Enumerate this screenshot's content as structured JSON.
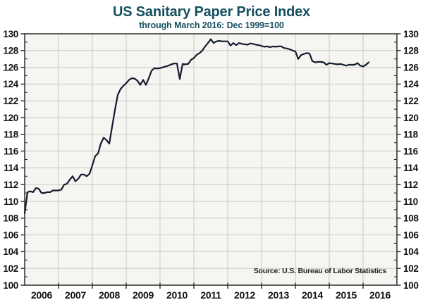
{
  "colors": {
    "title": "#16505f",
    "line": "#141b2e",
    "grid": "#c9c8c4",
    "plot_bg": "#f6f5f2",
    "axis": "#2b2b2b",
    "tick_label": "#111111"
  },
  "chart_data": {
    "type": "line",
    "title": "US Sanitary Paper Price Index",
    "subtitle": "through March 2016: Dec 1999=100",
    "source": "Source: U.S. Bureau of Labor Statistics",
    "x_unit": "month",
    "x_start": "2006-01",
    "x_end": "2016-03",
    "x_axis_years": [
      2006,
      2017
    ],
    "x_tick_labels": [
      "2006",
      "2007",
      "2008",
      "2009",
      "2010",
      "2011",
      "2012",
      "2013",
      "2014",
      "2015",
      "2016"
    ],
    "ylim": [
      100,
      130
    ],
    "y_major_step": 2,
    "y_minor_step": 1,
    "grid": true,
    "legend": "none",
    "series": [
      {
        "name": "US Sanitary Paper Price Index (Dec 1999=100)",
        "monthly_values": [
          108.6,
          111.1,
          111.2,
          111.1,
          111.6,
          111.5,
          111.0,
          111.0,
          111.1,
          111.1,
          111.3,
          111.3,
          111.3,
          111.4,
          112.0,
          112.1,
          112.6,
          113.0,
          112.4,
          112.7,
          113.2,
          113.2,
          113.0,
          113.3,
          114.3,
          115.4,
          115.7,
          116.9,
          117.6,
          117.3,
          116.9,
          118.9,
          120.9,
          122.7,
          123.4,
          123.8,
          124.1,
          124.5,
          124.7,
          124.65,
          124.4,
          123.9,
          124.5,
          123.9,
          124.7,
          125.6,
          125.9,
          125.85,
          125.9,
          126.0,
          126.1,
          126.2,
          126.35,
          126.45,
          126.45,
          124.6,
          126.4,
          126.35,
          126.4,
          126.9,
          127.1,
          127.5,
          127.7,
          128.0,
          128.5,
          128.9,
          129.35,
          128.9,
          129.1,
          129.15,
          129.1,
          129.1,
          129.1,
          128.6,
          128.9,
          128.65,
          128.9,
          128.8,
          128.75,
          128.7,
          128.85,
          128.8,
          128.7,
          128.65,
          128.55,
          128.45,
          128.5,
          128.4,
          128.5,
          128.45,
          128.5,
          128.5,
          128.3,
          128.25,
          128.15,
          128.0,
          127.9,
          127.0,
          127.45,
          127.6,
          127.7,
          127.65,
          126.75,
          126.6,
          126.65,
          126.65,
          126.6,
          126.3,
          126.5,
          126.45,
          126.4,
          126.35,
          126.4,
          126.3,
          126.2,
          126.3,
          126.3,
          126.3,
          126.5,
          126.2,
          126.1,
          126.3,
          126.6
        ]
      }
    ]
  }
}
